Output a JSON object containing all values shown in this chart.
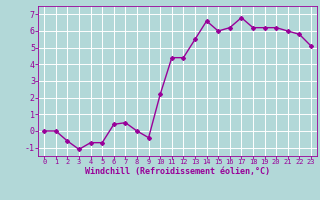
{
  "x": [
    0,
    1,
    2,
    3,
    4,
    5,
    6,
    7,
    8,
    9,
    10,
    11,
    12,
    13,
    14,
    15,
    16,
    17,
    18,
    19,
    20,
    21,
    22,
    23
  ],
  "y": [
    0.0,
    0.0,
    -0.6,
    -1.1,
    -0.7,
    -0.7,
    0.4,
    0.5,
    0.0,
    -0.4,
    2.2,
    4.4,
    4.4,
    5.5,
    6.6,
    6.0,
    6.2,
    6.8,
    6.2,
    6.2,
    6.2,
    6.0,
    5.8,
    5.1
  ],
  "line_color": "#990099",
  "marker": "D",
  "marker_size": 2.0,
  "bg_color": "#b2d8d8",
  "grid_color": "#ffffff",
  "xlabel": "Windchill (Refroidissement éolien,°C)",
  "xlabel_color": "#990099",
  "tick_color": "#990099",
  "xlim": [
    -0.5,
    23.5
  ],
  "ylim": [
    -1.5,
    7.5
  ],
  "yticks": [
    -1,
    0,
    1,
    2,
    3,
    4,
    5,
    6,
    7
  ],
  "xticks": [
    0,
    1,
    2,
    3,
    4,
    5,
    6,
    7,
    8,
    9,
    10,
    11,
    12,
    13,
    14,
    15,
    16,
    17,
    18,
    19,
    20,
    21,
    22,
    23
  ],
  "line_width": 1.0
}
